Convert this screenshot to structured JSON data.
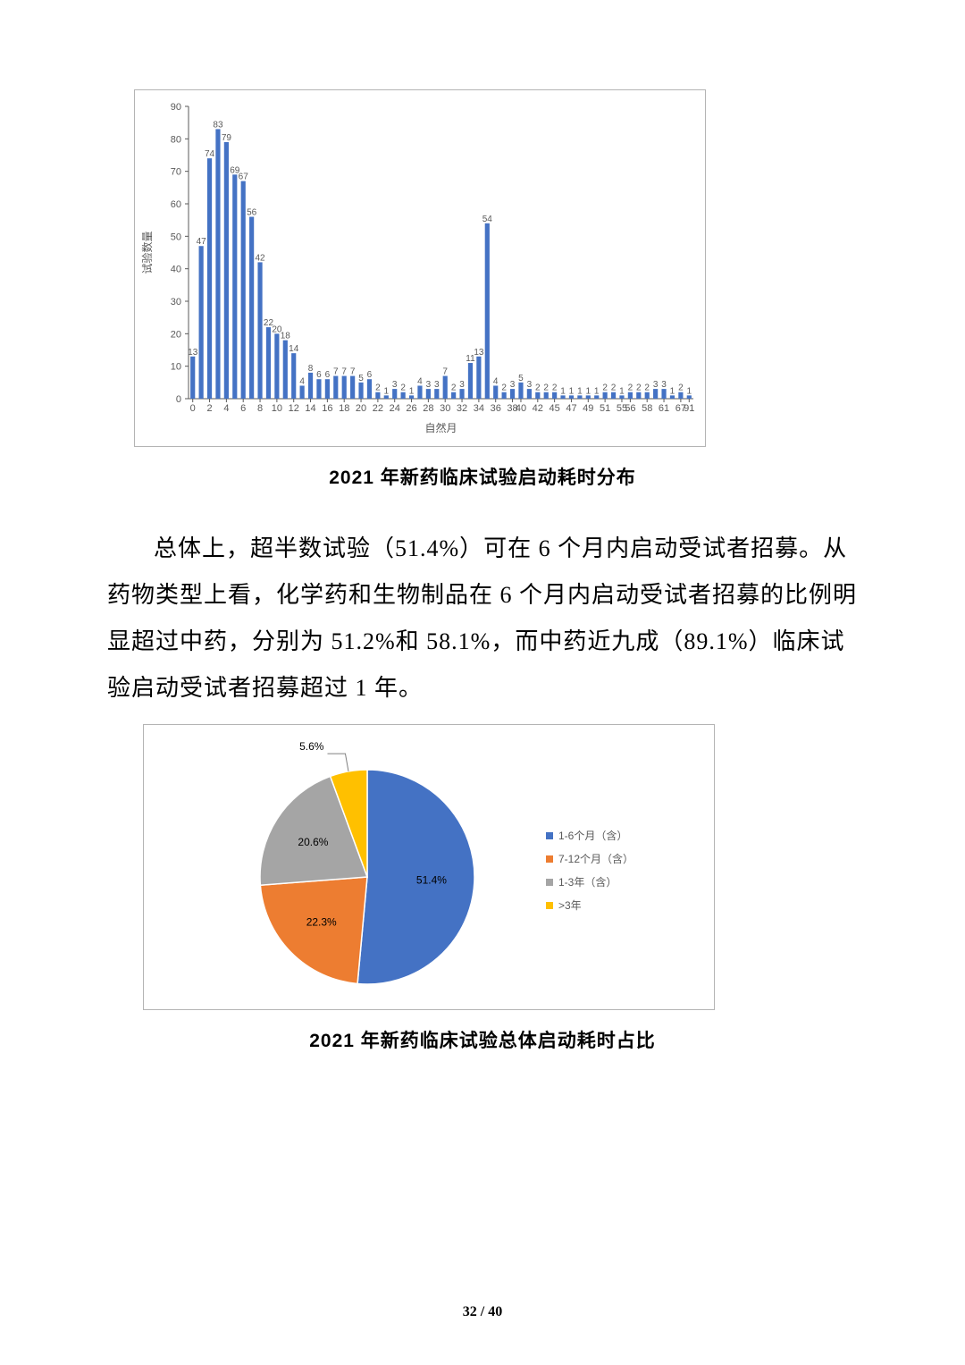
{
  "bar_chart": {
    "type": "bar",
    "ylabel": "试验数量",
    "xlabel": "自然月",
    "ylim": [
      0,
      90
    ],
    "ytick_step": 10,
    "categories": [
      "0",
      "1",
      "2",
      "3",
      "4",
      "5",
      "6",
      "7",
      "8",
      "9",
      "10",
      "11",
      "12",
      "13",
      "14",
      "15",
      "16",
      "17",
      "18",
      "19",
      "20",
      "21",
      "22",
      "23",
      "24",
      "25",
      "26",
      "27",
      "28",
      "29",
      "30",
      "31",
      "32",
      "33",
      "34",
      "35",
      "36",
      "37",
      "38",
      "40",
      "41",
      "42",
      "43",
      "45",
      "46",
      "47",
      "48",
      "49",
      "50",
      "51",
      "52",
      "55",
      "56",
      "57",
      "58",
      "60",
      "61",
      "63",
      "67",
      "91"
    ],
    "values": [
      13,
      47,
      74,
      83,
      79,
      69,
      67,
      56,
      42,
      22,
      20,
      18,
      14,
      4,
      8,
      6,
      6,
      7,
      7,
      7,
      5,
      6,
      2,
      1,
      3,
      2,
      1,
      4,
      3,
      3,
      7,
      2,
      3,
      11,
      13,
      54,
      4,
      2,
      3,
      5,
      3,
      2,
      2,
      2,
      1,
      1,
      1,
      1,
      1,
      2,
      2,
      1,
      2,
      2,
      2,
      3,
      3,
      1,
      2,
      1
    ],
    "bar_color": "#4472c4",
    "grid_color": "#d9d9d9",
    "axis_color": "#595959",
    "tick_fontsize": 11,
    "label_fontsize": 12,
    "value_label_fontsize": 10,
    "value_label_color": "#595959",
    "border_color": "#b4b4b4"
  },
  "caption_bar": "2021 年新药临床试验启动耗时分布",
  "body_paragraph": "总体上，超半数试验（51.4%）可在 6 个月内启动受试者招募。从药物类型上看，化学药和生物制品在 6 个月内启动受试者招募的比例明显超过中药，分别为 51.2%和 58.1%，而中药近九成（89.1%）临床试验启动受试者招募超过 1 年。",
  "pie_chart": {
    "type": "pie",
    "slices": [
      {
        "label": "1-6个月（含）",
        "value": 51.4,
        "color": "#4472c4",
        "display": "51.4%"
      },
      {
        "label": "7-12个月（含）",
        "value": 22.3,
        "color": "#ed7d31",
        "display": "22.3%"
      },
      {
        "label": "1-3年（含）",
        "value": 20.6,
        "color": "#a5a5a5",
        "display": "20.6%"
      },
      {
        "label": ">3年",
        "value": 5.6,
        "color": "#ffc000",
        "display": "5.6%"
      }
    ],
    "legend_marker_size": 8,
    "legend_fontsize": 12,
    "label_fontsize": 12,
    "label_color": "#000000",
    "border_color": "#b4b4b4",
    "leader_color": "#808080"
  },
  "caption_pie": "2021 年新药临床试验总体启动耗时占比",
  "page": {
    "current": "32",
    "total": "40"
  }
}
